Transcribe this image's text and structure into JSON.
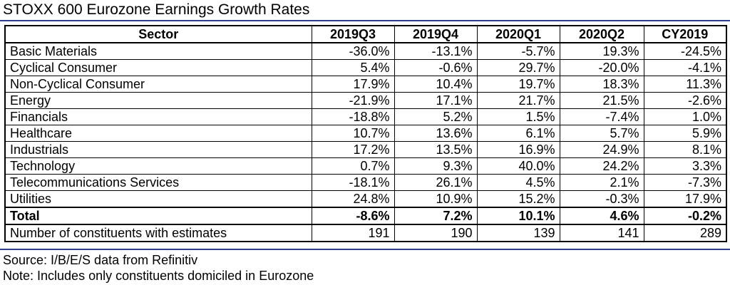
{
  "title": "STOXX 600 Eurozone Earnings Growth Rates",
  "table": {
    "headers": [
      "Sector",
      "2019Q3",
      "2019Q4",
      "2020Q1",
      "2020Q2",
      "CY2019"
    ],
    "rows": [
      [
        "Basic Materials",
        "-36.0%",
        "-13.1%",
        "-5.7%",
        "19.3%",
        "-24.5%"
      ],
      [
        "Cyclical Consumer",
        "5.4%",
        "-0.6%",
        "29.7%",
        "-20.0%",
        "-4.1%"
      ],
      [
        "Non-Cyclical Consumer",
        "17.9%",
        "10.4%",
        "19.7%",
        "18.3%",
        "11.3%"
      ],
      [
        "Energy",
        "-21.9%",
        "17.1%",
        "21.7%",
        "21.5%",
        "-2.6%"
      ],
      [
        "Financials",
        "-18.8%",
        "5.2%",
        "1.5%",
        "-7.4%",
        "1.0%"
      ],
      [
        "Healthcare",
        "10.7%",
        "13.6%",
        "6.1%",
        "5.7%",
        "5.9%"
      ],
      [
        "Industrials",
        "17.2%",
        "13.5%",
        "16.9%",
        "24.9%",
        "8.1%"
      ],
      [
        "Technology",
        "0.7%",
        "9.3%",
        "40.0%",
        "24.2%",
        "3.3%"
      ],
      [
        "Telecommunications Services",
        "-18.1%",
        "26.1%",
        "4.5%",
        "2.1%",
        "-7.3%"
      ],
      [
        "Utilities",
        "24.8%",
        "10.9%",
        "15.2%",
        "-0.3%",
        "17.9%"
      ]
    ],
    "total": [
      "Total",
      "-8.6%",
      "7.2%",
      "10.1%",
      "4.6%",
      "-0.2%"
    ],
    "constituents": [
      "Number of constituents with estimates",
      "191",
      "190",
      "139",
      "141",
      "289"
    ]
  },
  "footer": {
    "source": "Source: I/B/E/S data from Refinitiv",
    "note": "Note: Includes only constituents domiciled in Eurozone"
  }
}
